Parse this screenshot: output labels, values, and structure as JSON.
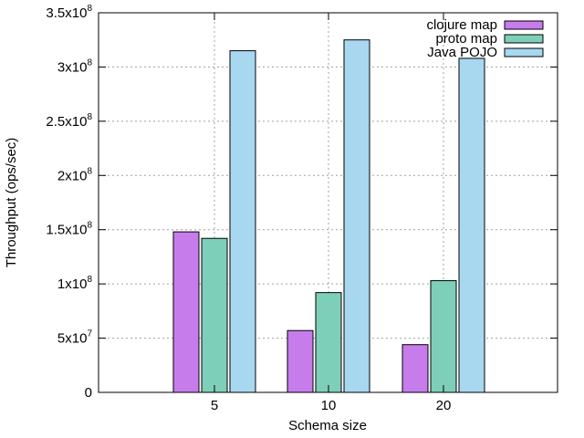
{
  "chart_data": {
    "type": "bar",
    "xlabel": "Schema size",
    "ylabel": "Throughput (ops/sec)",
    "categories": [
      "5",
      "10",
      "20"
    ],
    "ylim": [
      0,
      350000000
    ],
    "y_ticks": [
      {
        "value": 0,
        "mant": "0",
        "exp": ""
      },
      {
        "value": 50000000,
        "mant": "5x10",
        "exp": "7"
      },
      {
        "value": 100000000,
        "mant": "1x10",
        "exp": "8"
      },
      {
        "value": 150000000,
        "mant": "1.5x10",
        "exp": "8"
      },
      {
        "value": 200000000,
        "mant": "2x10",
        "exp": "8"
      },
      {
        "value": 250000000,
        "mant": "2.5x10",
        "exp": "8"
      },
      {
        "value": 300000000,
        "mant": "3x10",
        "exp": "8"
      },
      {
        "value": 350000000,
        "mant": "3.5x10",
        "exp": "8"
      }
    ],
    "series": [
      {
        "name": "clojure map",
        "color": "#c77ceb",
        "values": [
          148000000,
          57000000,
          44000000
        ]
      },
      {
        "name": "proto map",
        "color": "#7ecfb9",
        "values": [
          142000000,
          92000000,
          103000000
        ]
      },
      {
        "name": "Java POJO",
        "color": "#a8d8f0",
        "values": [
          315000000,
          325000000,
          308000000
        ]
      }
    ],
    "grid": true,
    "legend_position": "top-right"
  }
}
